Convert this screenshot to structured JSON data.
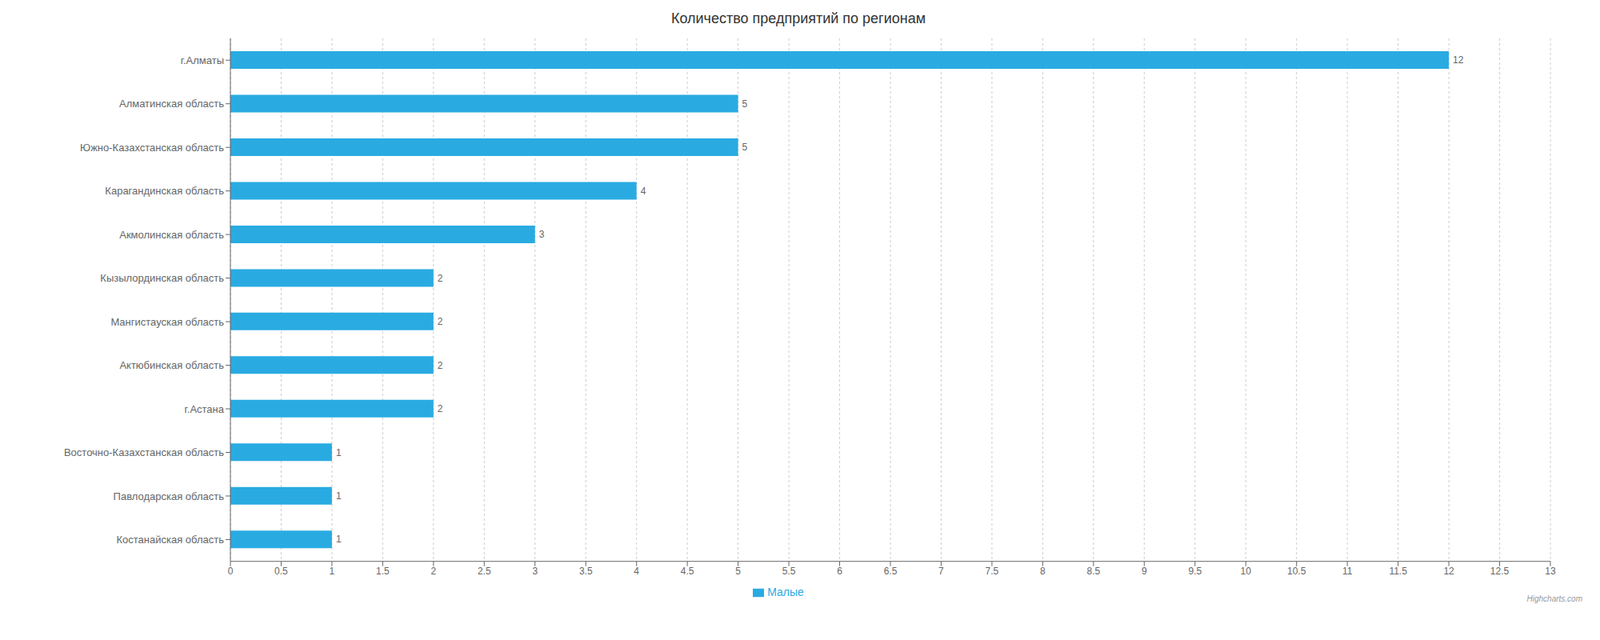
{
  "chart_data": {
    "type": "bar",
    "title": "Количество предприятий по регионам",
    "orientation": "horizontal",
    "categories": [
      "г.Алматы",
      "Алматинская область",
      "Южно-Казахстанская область",
      "Карагандинская область",
      "Акмолинская область",
      "Кызылординская область",
      "Мангистауская область",
      "Актюбинская область",
      "г.Астана",
      "Восточно-Казахстанская область",
      "Павлодарская область",
      "Костанайская область"
    ],
    "series": [
      {
        "name": "Малые",
        "color": "#29ABE2",
        "values": [
          12,
          5,
          5,
          4,
          3,
          2,
          2,
          2,
          2,
          1,
          1,
          1
        ]
      }
    ],
    "xlim": [
      0,
      13
    ],
    "xticks": [
      0,
      0.5,
      1,
      1.5,
      2,
      2.5,
      3,
      3.5,
      4,
      4.5,
      5,
      5.5,
      6,
      6.5,
      7,
      7.5,
      8,
      8.5,
      9,
      9.5,
      10,
      10.5,
      11,
      11.5,
      12,
      12.5,
      13
    ],
    "grid": true,
    "legend": "bottom",
    "data_labels": true,
    "annotations": [
      "Highcharts.com"
    ]
  }
}
